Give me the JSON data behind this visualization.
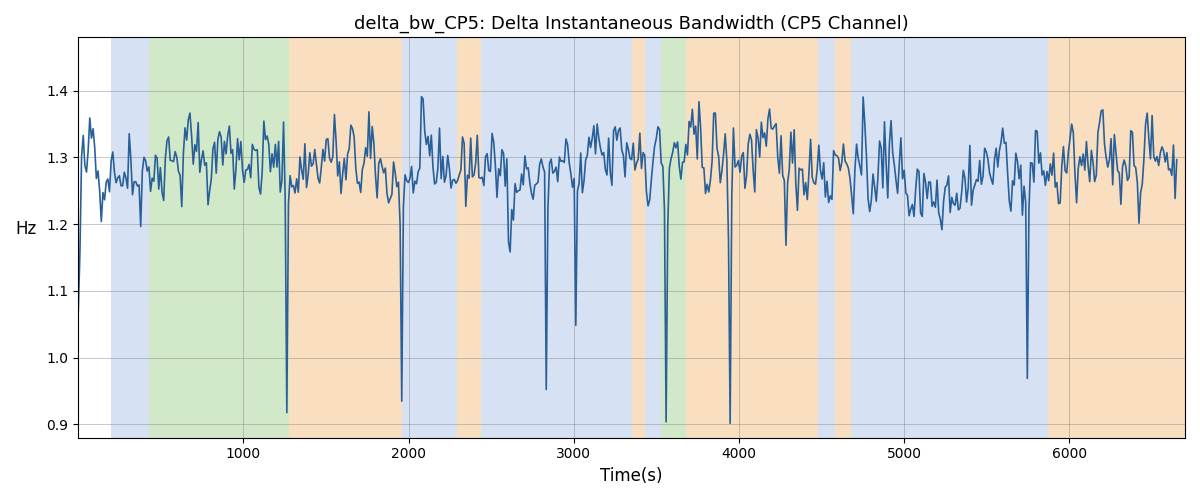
{
  "title": "delta_bw_CP5: Delta Instantaneous Bandwidth (CP5 Channel)",
  "xlabel": "Time(s)",
  "ylabel": "Hz",
  "xlim": [
    0,
    6700
  ],
  "ylim": [
    0.88,
    1.48
  ],
  "line_color": "#2a6099",
  "line_width": 1.2,
  "figsize": [
    12,
    5
  ],
  "dpi": 100,
  "bands": [
    {
      "xmin": 195,
      "xmax": 430,
      "color": "#aec6e8",
      "alpha": 0.5
    },
    {
      "xmin": 430,
      "xmax": 1275,
      "color": "#90c97a",
      "alpha": 0.4
    },
    {
      "xmin": 1275,
      "xmax": 1960,
      "color": "#f5c083",
      "alpha": 0.5
    },
    {
      "xmin": 1960,
      "xmax": 2290,
      "color": "#aec6e8",
      "alpha": 0.5
    },
    {
      "xmin": 2290,
      "xmax": 2440,
      "color": "#f5c083",
      "alpha": 0.5
    },
    {
      "xmin": 2440,
      "xmax": 3350,
      "color": "#aec6e8",
      "alpha": 0.5
    },
    {
      "xmin": 3350,
      "xmax": 3430,
      "color": "#f5c083",
      "alpha": 0.5
    },
    {
      "xmin": 3430,
      "xmax": 3530,
      "color": "#aec6e8",
      "alpha": 0.5
    },
    {
      "xmin": 3530,
      "xmax": 3680,
      "color": "#90c97a",
      "alpha": 0.4
    },
    {
      "xmin": 3680,
      "xmax": 4480,
      "color": "#f5c083",
      "alpha": 0.5
    },
    {
      "xmin": 4480,
      "xmax": 4580,
      "color": "#aec6e8",
      "alpha": 0.5
    },
    {
      "xmin": 4580,
      "xmax": 4680,
      "color": "#f5c083",
      "alpha": 0.5
    },
    {
      "xmin": 4680,
      "xmax": 5870,
      "color": "#aec6e8",
      "alpha": 0.5
    },
    {
      "xmin": 5870,
      "xmax": 6050,
      "color": "#f5c083",
      "alpha": 0.5
    },
    {
      "xmin": 6050,
      "xmax": 6700,
      "color": "#f5c083",
      "alpha": 0.5
    }
  ],
  "seed": 42,
  "n_points": 670,
  "signal_mean": 1.285,
  "signal_std": 0.055
}
